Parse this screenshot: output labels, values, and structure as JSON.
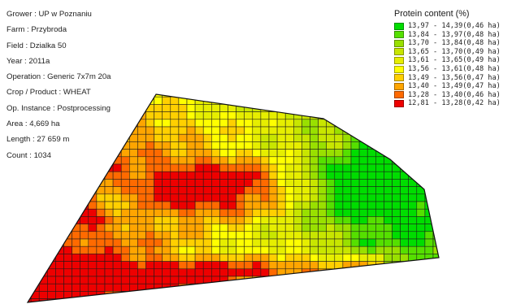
{
  "info": [
    "Grower : UP w Poznaniu",
    "Farm : Przybroda",
    "Field  : Dzialka 50",
    "Year : 2011a",
    "Operation : Generic 7x7m 20a",
    "Crop / Product : WHEAT",
    "Op. Instance : Postprocessing",
    "Area : 4,669 ha",
    "Length : 27 659 m",
    "Count : 1034"
  ],
  "legend": {
    "title": "Protein content (%)",
    "items": [
      {
        "range": "13,97 - 14,39",
        "area": "(0,46 ha)",
        "color": "#00dd00"
      },
      {
        "range": "13,84 - 13,97",
        "area": "(0,48 ha)",
        "color": "#55e000"
      },
      {
        "range": "13,70 - 13,84",
        "area": "(0,48 ha)",
        "color": "#99e000"
      },
      {
        "range": "13,65 - 13,70",
        "area": "(0,49 ha)",
        "color": "#c8e600"
      },
      {
        "range": "13,61 - 13,65",
        "area": "(0,49 ha)",
        "color": "#e6ee00"
      },
      {
        "range": "13,56 - 13,61",
        "area": "(0,48 ha)",
        "color": "#ffff00"
      },
      {
        "range": "13,49 - 13,56",
        "area": "(0,47 ha)",
        "color": "#ffd000"
      },
      {
        "range": "13,40 - 13,49",
        "area": "(0,47 ha)",
        "color": "#ffa500"
      },
      {
        "range": "13,28 - 13,40",
        "area": "(0,46 ha)",
        "color": "#ff6a00"
      },
      {
        "range": "12,81 - 13,28",
        "area": "(0,42 ha)",
        "color": "#ee0000"
      }
    ]
  }
}
